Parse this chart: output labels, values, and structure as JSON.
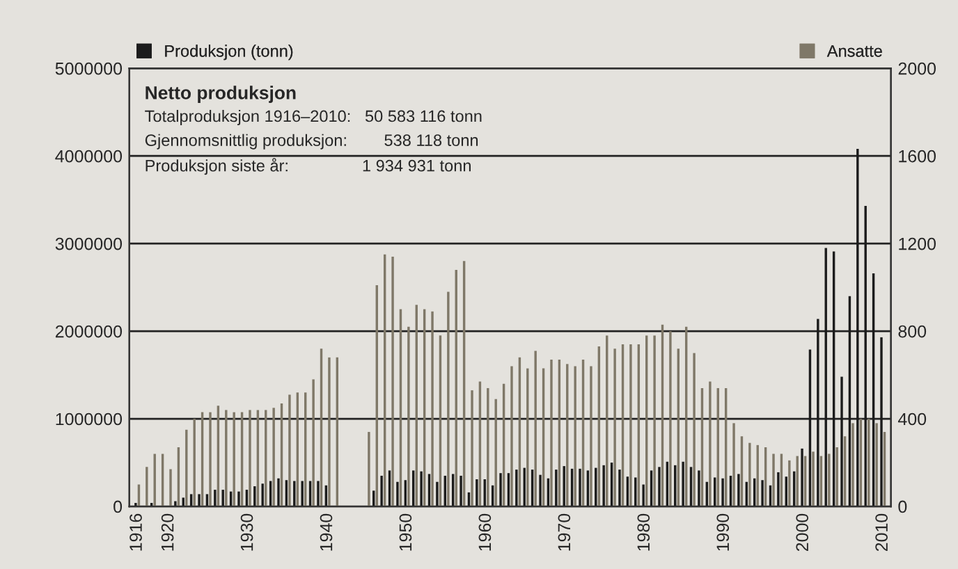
{
  "chart_data": {
    "type": "bar",
    "annotations": [
      "Netto produksjon",
      "Totalproduksjon 1916–2010:   50 583 116 tonn",
      "Gjennomsnittlig produksjon:        538 118 tonn",
      "Produksjon siste år:                1 934 931 tonn"
    ],
    "x": [
      1916,
      1917,
      1918,
      1919,
      1920,
      1921,
      1922,
      1923,
      1924,
      1925,
      1926,
      1927,
      1928,
      1929,
      1930,
      1931,
      1932,
      1933,
      1934,
      1935,
      1936,
      1937,
      1938,
      1939,
      1940,
      1941,
      1942,
      1943,
      1944,
      1945,
      1946,
      1947,
      1948,
      1949,
      1950,
      1951,
      1952,
      1953,
      1954,
      1955,
      1956,
      1957,
      1958,
      1959,
      1960,
      1961,
      1962,
      1963,
      1964,
      1965,
      1966,
      1967,
      1968,
      1969,
      1970,
      1971,
      1972,
      1973,
      1974,
      1975,
      1976,
      1977,
      1978,
      1979,
      1980,
      1981,
      1982,
      1983,
      1984,
      1985,
      1986,
      1987,
      1988,
      1989,
      1990,
      1991,
      1992,
      1993,
      1994,
      1995,
      1996,
      1997,
      1998,
      1999,
      2000,
      2001,
      2002,
      2003,
      2004,
      2005,
      2006,
      2007,
      2008,
      2009,
      2010
    ],
    "series": [
      {
        "name": "Produksjon (tonn)",
        "color": "#1c1c1c",
        "values": [
          40000,
          null,
          40000,
          null,
          null,
          60000,
          100000,
          140000,
          140000,
          140000,
          190000,
          190000,
          170000,
          170000,
          190000,
          230000,
          260000,
          290000,
          320000,
          300000,
          290000,
          290000,
          290000,
          290000,
          240000,
          null,
          null,
          null,
          null,
          null,
          180000,
          350000,
          410000,
          280000,
          300000,
          410000,
          400000,
          370000,
          280000,
          350000,
          370000,
          350000,
          160000,
          310000,
          310000,
          240000,
          380000,
          380000,
          420000,
          440000,
          420000,
          360000,
          320000,
          420000,
          460000,
          430000,
          430000,
          410000,
          440000,
          470000,
          500000,
          420000,
          340000,
          330000,
          250000,
          410000,
          450000,
          510000,
          470000,
          510000,
          450000,
          410000,
          280000,
          330000,
          320000,
          350000,
          370000,
          280000,
          320000,
          300000,
          240000,
          390000,
          340000,
          400000,
          660000,
          1790000,
          2140000,
          2950000,
          2910000,
          1480000,
          2400000,
          4080000,
          3430000,
          2660000,
          1930000
        ]
      },
      {
        "name": "Ansatte",
        "color": "#7f7868",
        "axis": "y2",
        "values": [
          100,
          180,
          240,
          240,
          170,
          270,
          350,
          400,
          430,
          430,
          460,
          440,
          430,
          430,
          440,
          440,
          440,
          450,
          470,
          510,
          520,
          520,
          580,
          720,
          680,
          680,
          null,
          null,
          null,
          340,
          1010,
          1150,
          1140,
          900,
          820,
          920,
          900,
          890,
          780,
          980,
          1080,
          1120,
          530,
          570,
          540,
          490,
          560,
          640,
          680,
          630,
          710,
          630,
          670,
          670,
          650,
          640,
          670,
          640,
          730,
          780,
          720,
          740,
          740,
          740,
          780,
          780,
          830,
          800,
          720,
          820,
          700,
          540,
          570,
          540,
          540,
          380,
          320,
          290,
          280,
          270,
          240,
          240,
          210,
          230,
          230,
          250,
          230,
          240,
          270,
          320,
          380,
          400,
          400,
          380,
          340
        ]
      }
    ],
    "xlim": [
      1915,
      2011
    ],
    "xticks": [
      1916,
      1920,
      1930,
      1940,
      1950,
      1960,
      1970,
      1980,
      1990,
      2000,
      2010
    ],
    "ylim": [
      0,
      5000000
    ],
    "yticks": [
      0,
      1000000,
      2000000,
      3000000,
      4000000,
      5000000
    ],
    "y2lim": [
      0,
      2000
    ],
    "y2ticks": [
      0,
      400,
      800,
      1200,
      1600,
      2000
    ],
    "grid": "y",
    "legend": "top"
  }
}
